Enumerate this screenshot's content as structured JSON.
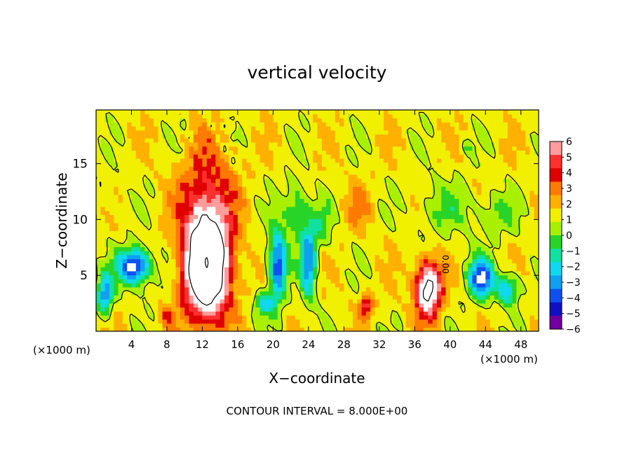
{
  "chart_data": {
    "type": "heatmap",
    "title": "vertical velocity",
    "xlabel": "X−coordinate",
    "ylabel": "Z−coordinate",
    "x_units_left": "(×1000 m)",
    "x_units_right": "(×1000 m)",
    "xlim": [
      0,
      50
    ],
    "ylim": [
      0,
      19.8
    ],
    "x_ticks": [
      4,
      8,
      12,
      16,
      20,
      24,
      28,
      32,
      36,
      40,
      44,
      48
    ],
    "y_ticks": [
      5,
      10,
      15
    ],
    "colorbar": {
      "ticks": [
        6,
        5,
        4,
        3,
        2,
        1,
        0,
        -1,
        -2,
        -3,
        -4,
        -5,
        -6
      ],
      "tick_labels": [
        "6",
        "5",
        "4",
        "3",
        "2",
        "1",
        "0",
        "−1",
        "−2",
        "−3",
        "−4",
        "−5",
        "−6"
      ],
      "colors": [
        "#ff9c9c",
        "#ff3030",
        "#e00000",
        "#ff7a00",
        "#ffb000",
        "#f0f000",
        "#a8f000",
        "#28d428",
        "#10e0a0",
        "#10d8f0",
        "#10a0f0",
        "#1050f0",
        "#1010c0",
        "#7000a0"
      ]
    },
    "contour_label": "0.00",
    "footer": "CONTOUR INTERVAL = 8.000E+00",
    "features": [
      {
        "kind": "updraft",
        "x": 12.5,
        "z": 6.0,
        "sx": 2.4,
        "sz": 4.5,
        "amp": 14
      },
      {
        "kind": "updraft",
        "x": 37.5,
        "z": 3.8,
        "sx": 1.4,
        "sz": 2.4,
        "amp": 9
      },
      {
        "kind": "updraft",
        "x": 30.5,
        "z": 2.3,
        "sx": 0.6,
        "sz": 1.0,
        "amp": 5
      },
      {
        "kind": "updraft",
        "x": 8.0,
        "z": 1.3,
        "sx": 0.8,
        "sz": 0.8,
        "amp": 2.5
      },
      {
        "kind": "updraft",
        "x": 33.0,
        "z": 1.6,
        "sx": 0.6,
        "sz": 0.9,
        "amp": 3.5
      },
      {
        "kind": "updraft",
        "x": 12.5,
        "z": 12.5,
        "sx": 3.0,
        "sz": 4.5,
        "amp": 3.0
      },
      {
        "kind": "updraft",
        "x": 29.5,
        "z": 11.0,
        "sx": 1.6,
        "sz": 2.0,
        "amp": 1.3
      },
      {
        "kind": "downdraft",
        "x": 4.3,
        "z": 5.8,
        "sx": 1.8,
        "sz": 1.6,
        "amp": -8
      },
      {
        "kind": "downdraft",
        "x": 1.0,
        "z": 3.3,
        "sx": 0.8,
        "sz": 1.8,
        "amp": -6
      },
      {
        "kind": "downdraft",
        "x": 20.5,
        "z": 6.0,
        "sx": 1.0,
        "sz": 3.2,
        "amp": -7
      },
      {
        "kind": "downdraft",
        "x": 24.0,
        "z": 6.3,
        "sx": 0.8,
        "sz": 3.5,
        "amp": -6
      },
      {
        "kind": "downdraft",
        "x": 22.5,
        "z": 11.0,
        "sx": 1.2,
        "sz": 2.5,
        "amp": -3
      },
      {
        "kind": "downdraft",
        "x": 43.5,
        "z": 4.8,
        "sx": 1.4,
        "sz": 1.8,
        "amp": -7
      },
      {
        "kind": "downdraft",
        "x": 46.5,
        "z": 3.8,
        "sx": 1.2,
        "sz": 1.3,
        "amp": -5
      },
      {
        "kind": "downdraft",
        "x": 33.0,
        "z": 1.5,
        "sx": 0.6,
        "sz": 0.9,
        "amp": -3
      },
      {
        "kind": "downdraft",
        "x": 19.0,
        "z": 2.5,
        "sx": 1.0,
        "sz": 1.0,
        "amp": -4
      },
      {
        "kind": "downdraft",
        "x": 39.0,
        "z": 11.0,
        "sx": 3.0,
        "sz": 2.5,
        "amp": -1.6
      },
      {
        "kind": "downdraft",
        "x": 45.0,
        "z": 10.5,
        "sx": 2.5,
        "sz": 2.0,
        "amp": -1.8
      },
      {
        "kind": "downdraft",
        "x": 42.0,
        "z": 16.5,
        "sx": 0.5,
        "sz": 0.6,
        "amp": -2.2
      },
      {
        "kind": "downdraft",
        "x": 1.5,
        "z": 12.0,
        "sx": 1.5,
        "sz": 2.0,
        "amp": -0.8
      },
      {
        "kind": "downdraft",
        "x": 25.5,
        "z": 9.5,
        "sx": 1.2,
        "sz": 2.0,
        "amp": -2
      }
    ]
  }
}
